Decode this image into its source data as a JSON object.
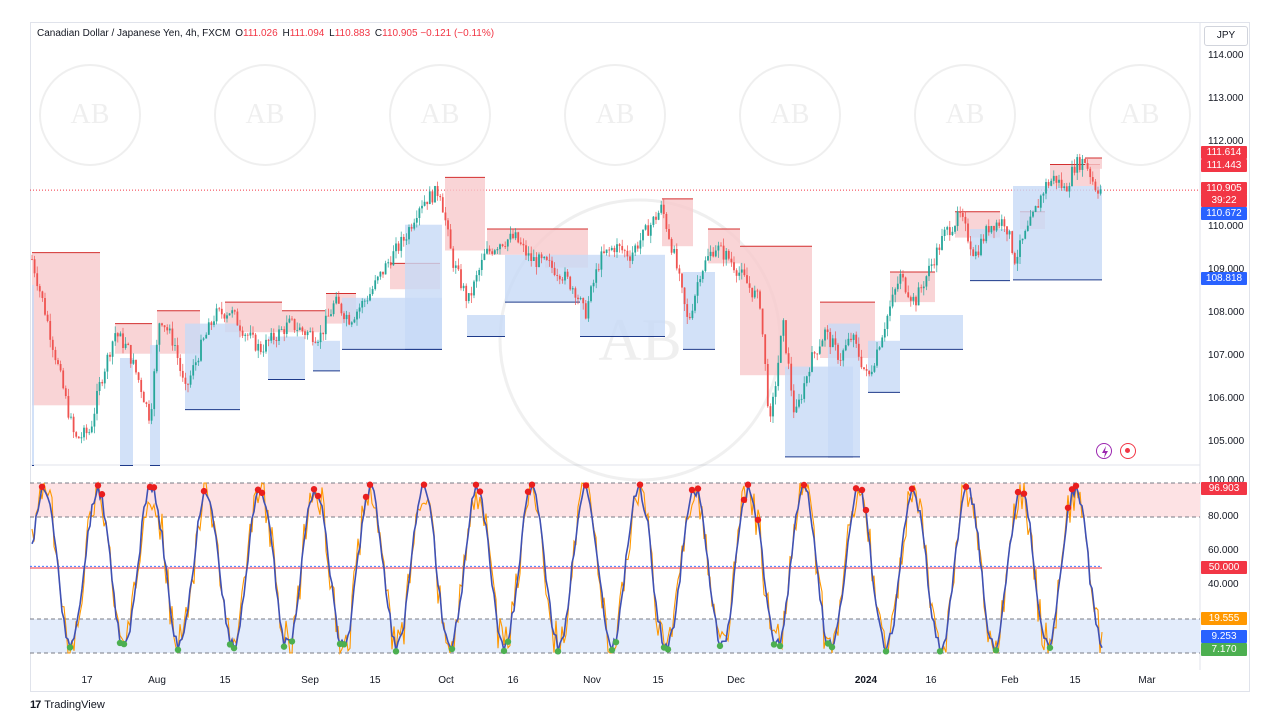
{
  "header": {
    "symbol": "Canadian Dollar / Japanese Yen, 4h, FXCM",
    "open_label": "O",
    "open": "111.026",
    "high_label": "H",
    "high": "111.094",
    "low_label": "L",
    "low": "110.883",
    "close_label": "C",
    "close": "110.905",
    "change": "−0.121 (−0.11%)"
  },
  "currency": "JPY",
  "price_axis": [
    "114.000",
    "113.000",
    "112.000",
    "110.000",
    "109.000",
    "108.000",
    "107.000",
    "106.000",
    "105.000"
  ],
  "price_tags": {
    "upper_level": "111.614",
    "upper_level_2": "111.443",
    "last_price": "110.905",
    "countdown": "39:22",
    "lower_level_1": "110.672",
    "lower_level_2": "108.818"
  },
  "osc_axis": [
    "100.000",
    "80.000",
    "60.000",
    "40.000"
  ],
  "osc_tags": {
    "top": "96.903",
    "mid": "50.000",
    "low_1": "19.555",
    "low_2": "9.253",
    "low_3": "7.170"
  },
  "time_axis": [
    "17",
    "Aug",
    "15",
    "Sep",
    "15",
    "Oct",
    "16",
    "Nov",
    "15",
    "Dec",
    "2024",
    "16",
    "Feb",
    "15",
    "Mar"
  ],
  "footer": {
    "logo": "17",
    "brand": "TradingView"
  },
  "colors": {
    "up": "#26a69a",
    "down": "#ef5350",
    "resistance_fill": "#f8c9cc",
    "support_fill": "#c7d9f6",
    "blue": "#2962ff",
    "red": "#f23645",
    "green": "#4caf50",
    "orange": "#ff9800"
  }
}
